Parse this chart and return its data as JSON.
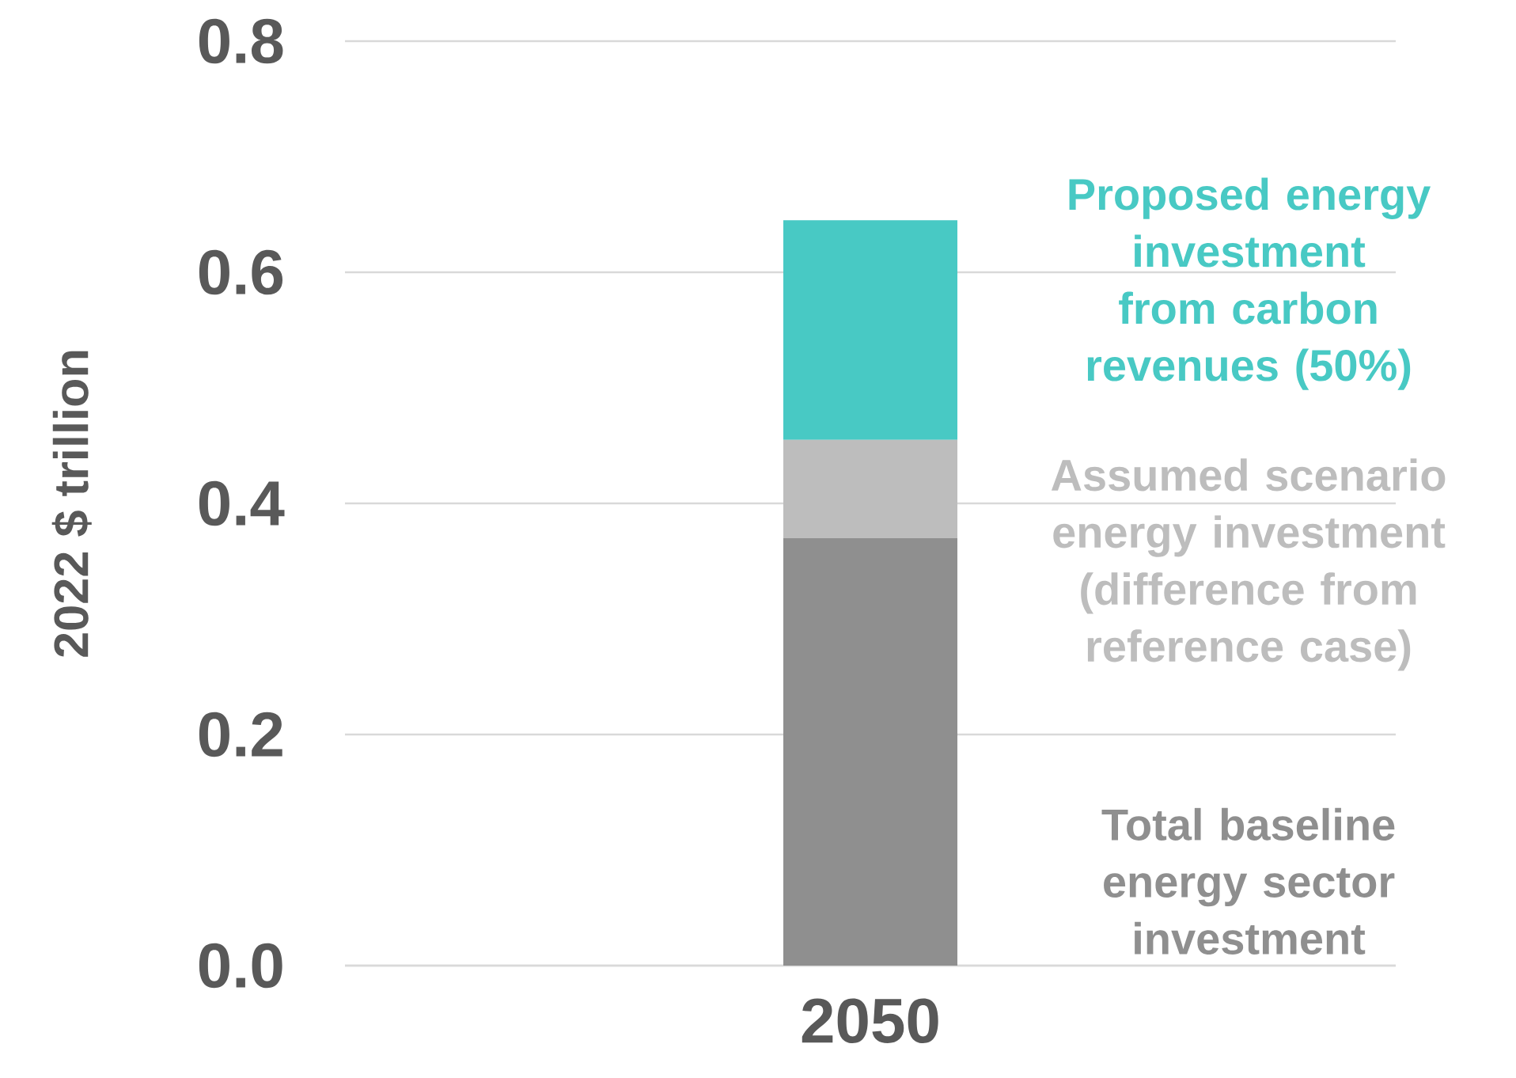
{
  "chart_data": {
    "type": "bar",
    "stacked": true,
    "ylabel": "2022 $ trillion",
    "categories": [
      "2050"
    ],
    "series": [
      {
        "name": "Total baseline energy sector investment",
        "color": "#8f8f8f",
        "values": [
          0.37
        ]
      },
      {
        "name": "Assumed scenario energy investment (difference from reference case)",
        "color": "#bdbdbd",
        "values": [
          0.085
        ]
      },
      {
        "name": "Proposed energy investment from carbon revenues (50%)",
        "color": "#48c9c4",
        "values": [
          0.19
        ]
      }
    ],
    "ylim": [
      0,
      0.8
    ],
    "yticks": [
      {
        "value": 0,
        "label": "0.0"
      },
      {
        "value": 0.2,
        "label": "0.2"
      },
      {
        "value": 0.4,
        "label": "0.4"
      },
      {
        "value": 0.6,
        "label": "0.6"
      },
      {
        "value": 0.8,
        "label": "0.8"
      }
    ],
    "grid": "y"
  }
}
